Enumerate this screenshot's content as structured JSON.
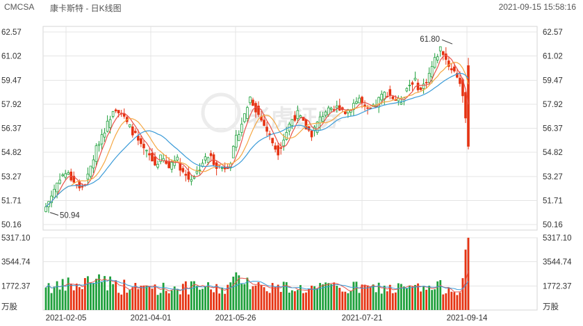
{
  "header": {
    "symbol": "CMCSA",
    "title": "康卡斯特 - 日K线图",
    "timestamp": "2021-09-15 15:58:16"
  },
  "watermark": {
    "text": "老虎证券"
  },
  "chart_data": {
    "type": "candlestick",
    "price_axis": {
      "ticks": [
        "62.57",
        "61.02",
        "59.47",
        "57.92",
        "56.37",
        "54.82",
        "53.27",
        "51.71",
        "50.16"
      ],
      "ylim": [
        50.16,
        62.57
      ]
    },
    "volume_axis": {
      "ticks": [
        "5317.10",
        "3544.74",
        "1772.37"
      ],
      "unit": "万股"
    },
    "x_ticks": [
      "2021-02-05",
      "2021-04-01",
      "2021-05-26",
      "2021-07-21",
      "2021-09-14"
    ],
    "annotations": {
      "high": "61.80",
      "low": "50.94"
    },
    "colors": {
      "up": "#1fa03c",
      "down": "#e63312",
      "ma5": "#e8524a",
      "ma10": "#f5a742",
      "ma20": "#3a9bd8",
      "vol_ma": "#3a9bd8"
    },
    "close_anchors": [
      51.3,
      52.2,
      53.2,
      53.5,
      53.0,
      52.4,
      53.0,
      54.5,
      55.8,
      56.6,
      57.8,
      57.4,
      56.6,
      56.0,
      55.1,
      54.7,
      54.0,
      54.5,
      53.8,
      54.6,
      53.6,
      53.1,
      53.4,
      54.2,
      54.6,
      54.0,
      53.8,
      54.1,
      55.8,
      57.0,
      58.4,
      57.4,
      56.6,
      55.7,
      54.8,
      55.8,
      56.9,
      57.3,
      56.5,
      56.0,
      56.8,
      57.5,
      57.4,
      57.8,
      57.4,
      57.9,
      58.3,
      57.4,
      57.6,
      58.3,
      58.7,
      58.3,
      58.0,
      59.0,
      59.5,
      58.8,
      59.6,
      60.7,
      61.6,
      60.5,
      60.0,
      59.2,
      55.1
    ],
    "volume_anchors": [
      1900,
      1600,
      1500,
      1800,
      1700,
      1600,
      2000,
      2200,
      2400,
      2000,
      1800,
      1600,
      1700,
      1500,
      1500,
      1700,
      1600,
      1500,
      1500,
      1600,
      1600,
      1500,
      1600,
      1600,
      1500,
      1500,
      1500,
      1700,
      2100,
      2500,
      2000,
      1700,
      1600,
      1700,
      1500,
      1600,
      1700,
      1500,
      1500,
      1500,
      1500,
      1500,
      1600,
      1600,
      1500,
      1500,
      1600,
      1500,
      1500,
      1600,
      1500,
      1500,
      1500,
      1500,
      1500,
      1500,
      1500,
      1500,
      1600,
      1600,
      1500,
      1600,
      5317
    ]
  }
}
